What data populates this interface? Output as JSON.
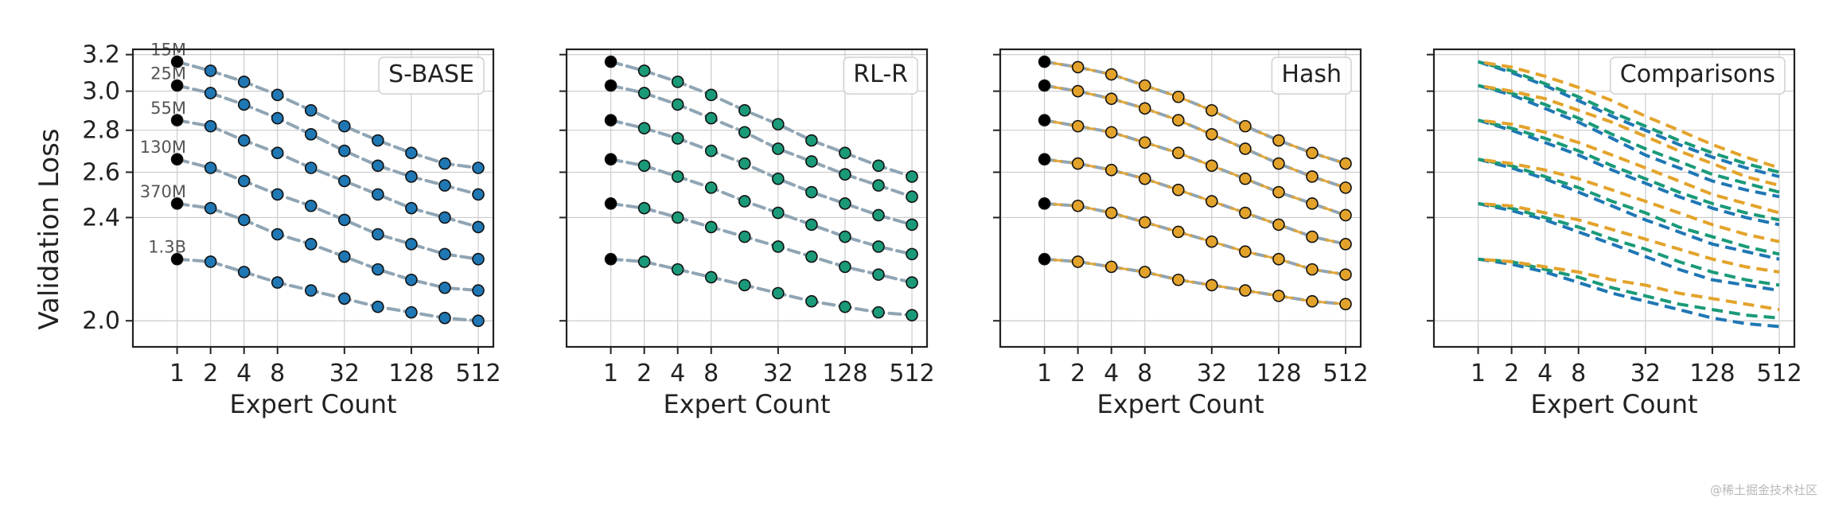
{
  "figure": {
    "ylabel": "Validation Loss",
    "watermark": "@稀土掘金技术社区",
    "y_ticks": [
      2.0,
      2.4,
      2.6,
      2.8,
      3.0,
      3.2
    ],
    "y_tick_labels": [
      "2.0",
      "2.4",
      "2.6",
      "2.8",
      "3.0",
      "3.2"
    ],
    "ylim": [
      1.91,
      3.23
    ],
    "log_scale_y": true,
    "log_scale_x": true,
    "x_ticks": [
      1,
      2,
      4,
      8,
      32,
      128,
      512
    ],
    "x_tick_labels": [
      "1",
      "2",
      "4",
      "8",
      "32",
      "128",
      "512"
    ],
    "xlim": [
      0.4,
      700
    ],
    "grid": true,
    "legend_placement": "top-right",
    "model_sizes": [
      "15M",
      "25M",
      "55M",
      "130M",
      "370M",
      "1.3B"
    ],
    "colors": {
      "sbase": "#1f77b4",
      "rlr": "#1a9a78",
      "hash": "#e3a32b",
      "dense_point": "#000000",
      "fit_line": "#8aa0b0",
      "grid": "#cccccc"
    }
  },
  "chart_data": [
    {
      "type": "scatter",
      "title": "S-BASE",
      "xlabel": "Expert Count",
      "ylabel": "Validation Loss",
      "x": [
        1,
        2,
        4,
        8,
        16,
        32,
        64,
        128,
        256,
        512
      ],
      "series": [
        {
          "name": "15M",
          "values": [
            3.16,
            3.11,
            3.05,
            2.98,
            2.9,
            2.82,
            2.75,
            2.69,
            2.64,
            2.62
          ]
        },
        {
          "name": "25M",
          "values": [
            3.03,
            2.99,
            2.93,
            2.86,
            2.78,
            2.7,
            2.63,
            2.58,
            2.54,
            2.5
          ]
        },
        {
          "name": "55M",
          "values": [
            2.85,
            2.82,
            2.75,
            2.69,
            2.62,
            2.56,
            2.5,
            2.44,
            2.4,
            2.36
          ]
        },
        {
          "name": "130M",
          "values": [
            2.66,
            2.62,
            2.56,
            2.5,
            2.45,
            2.39,
            2.33,
            2.29,
            2.25,
            2.23
          ]
        },
        {
          "name": "370M",
          "values": [
            2.46,
            2.44,
            2.39,
            2.33,
            2.29,
            2.24,
            2.19,
            2.15,
            2.12,
            2.11
          ]
        },
        {
          "name": "1.3B",
          "values": [
            2.23,
            2.22,
            2.18,
            2.14,
            2.11,
            2.08,
            2.05,
            2.03,
            2.01,
            2.0
          ]
        }
      ]
    },
    {
      "type": "scatter",
      "title": "RL-R",
      "xlabel": "Expert Count",
      "x": [
        1,
        2,
        4,
        8,
        16,
        32,
        64,
        128,
        256,
        512
      ],
      "series": [
        {
          "name": "15M",
          "values": [
            3.16,
            3.11,
            3.05,
            2.98,
            2.9,
            2.83,
            2.75,
            2.69,
            2.63,
            2.58
          ]
        },
        {
          "name": "25M",
          "values": [
            3.03,
            2.99,
            2.93,
            2.86,
            2.79,
            2.71,
            2.65,
            2.59,
            2.54,
            2.49
          ]
        },
        {
          "name": "55M",
          "values": [
            2.85,
            2.81,
            2.76,
            2.7,
            2.64,
            2.57,
            2.51,
            2.46,
            2.41,
            2.37
          ]
        },
        {
          "name": "130M",
          "values": [
            2.66,
            2.63,
            2.58,
            2.53,
            2.47,
            2.42,
            2.37,
            2.32,
            2.28,
            2.25
          ]
        },
        {
          "name": "370M",
          "values": [
            2.46,
            2.44,
            2.4,
            2.36,
            2.32,
            2.28,
            2.24,
            2.2,
            2.17,
            2.14
          ]
        },
        {
          "name": "1.3B",
          "values": [
            2.23,
            2.22,
            2.19,
            2.16,
            2.13,
            2.1,
            2.07,
            2.05,
            2.03,
            2.02
          ]
        }
      ]
    },
    {
      "type": "scatter",
      "title": "Hash",
      "xlabel": "Expert Count",
      "x": [
        1,
        2,
        4,
        8,
        16,
        32,
        64,
        128,
        256,
        512
      ],
      "series": [
        {
          "name": "15M",
          "values": [
            3.16,
            3.13,
            3.09,
            3.03,
            2.97,
            2.9,
            2.82,
            2.75,
            2.69,
            2.64
          ]
        },
        {
          "name": "25M",
          "values": [
            3.03,
            3.0,
            2.96,
            2.91,
            2.85,
            2.78,
            2.71,
            2.64,
            2.58,
            2.53
          ]
        },
        {
          "name": "55M",
          "values": [
            2.85,
            2.82,
            2.79,
            2.74,
            2.69,
            2.63,
            2.57,
            2.51,
            2.46,
            2.41
          ]
        },
        {
          "name": "130M",
          "values": [
            2.66,
            2.64,
            2.61,
            2.57,
            2.52,
            2.47,
            2.42,
            2.37,
            2.32,
            2.29
          ]
        },
        {
          "name": "370M",
          "values": [
            2.46,
            2.45,
            2.42,
            2.38,
            2.34,
            2.3,
            2.26,
            2.23,
            2.19,
            2.17
          ]
        },
        {
          "name": "1.3B",
          "values": [
            2.23,
            2.22,
            2.2,
            2.18,
            2.15,
            2.13,
            2.11,
            2.09,
            2.07,
            2.06
          ]
        }
      ]
    },
    {
      "type": "line",
      "title": "Comparisons",
      "xlabel": "Expert Count",
      "x": [
        1,
        2,
        4,
        8,
        16,
        32,
        64,
        128,
        256,
        512
      ],
      "series": [
        {
          "name": "S-BASE",
          "color": "#1f77b4",
          "lines": [
            [
              3.16,
              3.1,
              3.03,
              2.95,
              2.87,
              2.8,
              2.73,
              2.67,
              2.62,
              2.58
            ],
            [
              3.03,
              2.98,
              2.91,
              2.84,
              2.76,
              2.68,
              2.62,
              2.56,
              2.52,
              2.49
            ],
            [
              2.85,
              2.8,
              2.74,
              2.68,
              2.61,
              2.55,
              2.49,
              2.44,
              2.4,
              2.37
            ],
            [
              2.66,
              2.62,
              2.57,
              2.51,
              2.45,
              2.39,
              2.34,
              2.29,
              2.26,
              2.23
            ],
            [
              2.46,
              2.43,
              2.39,
              2.34,
              2.29,
              2.24,
              2.19,
              2.15,
              2.13,
              2.11
            ],
            [
              2.23,
              2.21,
              2.18,
              2.14,
              2.1,
              2.07,
              2.04,
              2.01,
              1.99,
              1.98
            ]
          ]
        },
        {
          "name": "RL-R",
          "color": "#1a9a78",
          "lines": [
            [
              3.16,
              3.11,
              3.04,
              2.97,
              2.89,
              2.82,
              2.75,
              2.69,
              2.64,
              2.6
            ],
            [
              3.03,
              2.99,
              2.93,
              2.86,
              2.78,
              2.71,
              2.65,
              2.59,
              2.55,
              2.51
            ],
            [
              2.85,
              2.81,
              2.76,
              2.7,
              2.63,
              2.57,
              2.51,
              2.46,
              2.42,
              2.39
            ],
            [
              2.66,
              2.63,
              2.58,
              2.53,
              2.47,
              2.42,
              2.36,
              2.32,
              2.28,
              2.25
            ],
            [
              2.46,
              2.44,
              2.4,
              2.36,
              2.31,
              2.27,
              2.22,
              2.18,
              2.15,
              2.13
            ],
            [
              2.23,
              2.22,
              2.19,
              2.16,
              2.12,
              2.09,
              2.06,
              2.04,
              2.02,
              2.01
            ]
          ]
        },
        {
          "name": "Hash",
          "color": "#e3a32b",
          "lines": [
            [
              3.16,
              3.13,
              3.08,
              3.02,
              2.95,
              2.87,
              2.8,
              2.73,
              2.67,
              2.62
            ],
            [
              3.03,
              3.0,
              2.96,
              2.9,
              2.84,
              2.77,
              2.7,
              2.64,
              2.58,
              2.54
            ],
            [
              2.85,
              2.83,
              2.79,
              2.74,
              2.68,
              2.62,
              2.56,
              2.5,
              2.46,
              2.42
            ],
            [
              2.66,
              2.64,
              2.61,
              2.57,
              2.52,
              2.47,
              2.42,
              2.37,
              2.33,
              2.3
            ],
            [
              2.46,
              2.45,
              2.42,
              2.39,
              2.35,
              2.31,
              2.27,
              2.23,
              2.2,
              2.18
            ],
            [
              2.23,
              2.22,
              2.2,
              2.18,
              2.15,
              2.13,
              2.1,
              2.08,
              2.06,
              2.04
            ]
          ]
        }
      ]
    }
  ]
}
